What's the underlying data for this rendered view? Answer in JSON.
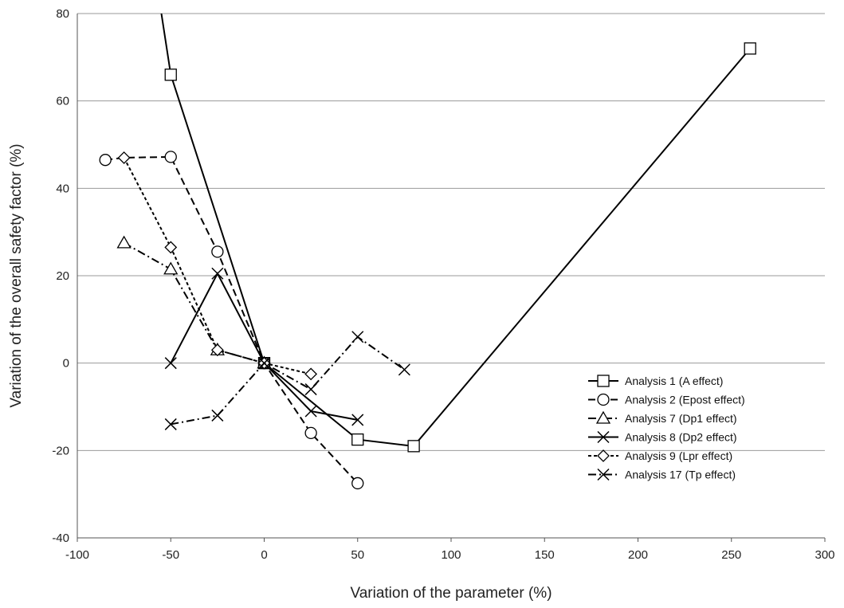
{
  "chart_data": {
    "type": "line",
    "xlabel": "Variation of the parameter (%)",
    "ylabel": "Variation of the overall safety factor (%)",
    "xlim": [
      -100,
      300
    ],
    "ylim": [
      -40,
      80
    ],
    "xticks": [
      -100,
      -50,
      0,
      50,
      100,
      150,
      200,
      250,
      300
    ],
    "yticks": [
      -40,
      -20,
      0,
      20,
      40,
      60,
      80
    ],
    "grid": "horizontal",
    "legend_position": "bottom-right",
    "series": [
      {
        "name": "Analysis 1 (A effect)",
        "marker": "square",
        "line": "solid",
        "points": [
          [
            -55,
            80
          ],
          [
            -50,
            66
          ],
          [
            0,
            0
          ],
          [
            50,
            -17.5
          ],
          [
            80,
            -19
          ],
          [
            260,
            72
          ]
        ],
        "marker_indices": [
          1,
          2,
          3,
          4,
          5
        ]
      },
      {
        "name": "Analysis 2 (Epost effect)",
        "marker": "circle",
        "line": "dashed",
        "points": [
          [
            -85,
            46.5
          ],
          [
            -75,
            47
          ],
          [
            -50,
            47.2
          ],
          [
            -25,
            25.5
          ],
          [
            0,
            0
          ],
          [
            25,
            -16
          ],
          [
            50,
            -27.5
          ]
        ],
        "marker_indices": [
          0,
          2,
          3,
          4,
          5,
          6
        ]
      },
      {
        "name": "Analysis 7 (Dp1 effect)",
        "marker": "triangle",
        "line": "dashdot",
        "points": [
          [
            -75,
            27.5
          ],
          [
            -50,
            21.5
          ],
          [
            -25,
            3
          ],
          [
            0,
            0
          ]
        ],
        "marker_indices": [
          0,
          1,
          2,
          3
        ]
      },
      {
        "name": "Analysis 8 (Dp2 effect)",
        "marker": "x",
        "line": "solid",
        "points": [
          [
            -50,
            0
          ],
          [
            -25,
            20.5
          ],
          [
            0,
            0
          ],
          [
            25,
            -11
          ],
          [
            50,
            -13
          ]
        ],
        "marker_indices": [
          0,
          1,
          2,
          3,
          4
        ]
      },
      {
        "name": "Analysis 9 (Lpr effect)",
        "marker": "diamond",
        "line": "dotted",
        "points": [
          [
            -75,
            47
          ],
          [
            -50,
            26.5
          ],
          [
            -25,
            3
          ],
          [
            0,
            0
          ],
          [
            25,
            -2.5
          ]
        ],
        "marker_indices": [
          0,
          1,
          2,
          3,
          4
        ]
      },
      {
        "name": "Analysis 17 (Tp effect)",
        "marker": "x",
        "line": "dashdot",
        "points": [
          [
            -50,
            -14
          ],
          [
            -25,
            -12
          ],
          [
            0,
            0
          ],
          [
            25,
            -6
          ],
          [
            50,
            6
          ],
          [
            75,
            -1.5
          ]
        ],
        "marker_indices": [
          0,
          1,
          2,
          3,
          4,
          5
        ]
      }
    ]
  }
}
